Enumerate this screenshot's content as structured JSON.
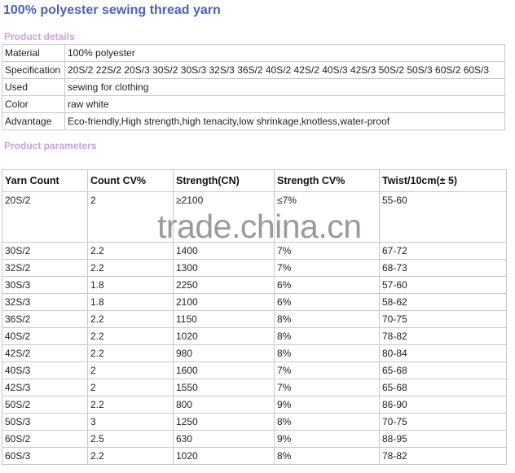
{
  "title": "100% polyester sewing thread yarn",
  "details": {
    "heading": "Product details",
    "rows": [
      {
        "label": "Material",
        "value": "100% polyester"
      },
      {
        "label": "Specification",
        "value": "20S/2 22S/2 20S/3 30S/2 30S/3 32S/3 36S/2 40S/2 42S/2 40S/3 42S/3 50S/2 50S/3 60S/2 60S/3"
      },
      {
        "label": "Used",
        "value": "sewing for clothing"
      },
      {
        "label": "Color",
        "value": "raw white"
      },
      {
        "label": "Advantage",
        "value": "Eco-friendly,High strength,high tenacity,low shrinkage,knotless,water-proof"
      }
    ]
  },
  "params": {
    "heading": "Product parameters",
    "columns": [
      "Yarn Count",
      "Count CV%",
      "Strength(CN)",
      "Strength CV%",
      "Twist/10cm(± 5)"
    ],
    "rows": [
      [
        "20S/2",
        "2",
        "≥2100",
        "≤7%",
        "55-60"
      ],
      [
        "30S/2",
        "2.2",
        "1400",
        "7%",
        "67-72"
      ],
      [
        "32S/2",
        "2.2",
        "1300",
        "7%",
        "68-73"
      ],
      [
        "30S/3",
        "1.8",
        "2250",
        "6%",
        "57-60"
      ],
      [
        "32S/3",
        "1.8",
        "2100",
        "6%",
        "58-62"
      ],
      [
        "36S/2",
        "2.2",
        "1150",
        "8%",
        "70-75"
      ],
      [
        "40S/2",
        "2.2",
        "1020",
        "8%",
        "78-82"
      ],
      [
        "42S/2",
        "2.2",
        "980",
        "8%",
        "80-84"
      ],
      [
        "40S/3",
        "2",
        "1600",
        "7%",
        "65-68"
      ],
      [
        "42S/3",
        "2",
        "1550",
        "7%",
        "65-68"
      ],
      [
        "50S/2",
        "2.2",
        "800",
        "9%",
        "86-90"
      ],
      [
        "50S/3",
        "3",
        "1250",
        "8%",
        "70-75"
      ],
      [
        "60S/2",
        "2.5",
        "630",
        "9%",
        "88-95"
      ],
      [
        "60S/3",
        "2.2",
        "1020",
        "8%",
        "78-82"
      ]
    ]
  },
  "watermark": "trade.china.cn"
}
